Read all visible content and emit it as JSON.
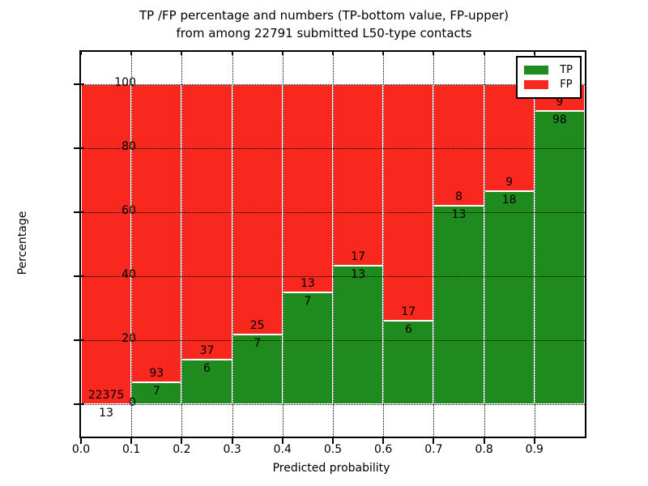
{
  "title_line1": "TP /FP percentage and numbers (TP-bottom value, FP-upper)",
  "title_line2": "from among 22791 submitted L50-type contacts",
  "chart_data": {
    "type": "bar",
    "stacked": true,
    "title": "TP /FP percentage and numbers (TP-bottom value, FP-upper) from among 22791 submitted L50-type contacts",
    "xlabel": "Predicted probability",
    "ylabel": "Percentage",
    "xlim": [
      0.0,
      1.0
    ],
    "ylim": [
      -10,
      110
    ],
    "bar_width": 0.1,
    "grid": "dotted",
    "legend_position": "upper right",
    "colors": {
      "tp": "#1f8b1f",
      "fp": "#f8281e",
      "bar_edge": "#ffffff"
    },
    "legend": [
      {
        "label": "TP",
        "color": "#1f8b1f"
      },
      {
        "label": "FP",
        "color": "#f8281e"
      }
    ],
    "y_ticks": [
      {
        "value": 0,
        "label": "0"
      },
      {
        "value": 20,
        "label": "20"
      },
      {
        "value": 40,
        "label": "40"
      },
      {
        "value": 60,
        "label": "60"
      },
      {
        "value": 80,
        "label": "80"
      },
      {
        "value": 100,
        "label": "100"
      }
    ],
    "x_ticks": [
      {
        "value": 0.0,
        "label": "0.0"
      },
      {
        "value": 0.1,
        "label": "0.1"
      },
      {
        "value": 0.2,
        "label": "0.2"
      },
      {
        "value": 0.3,
        "label": "0.3"
      },
      {
        "value": 0.4,
        "label": "0.4"
      },
      {
        "value": 0.5,
        "label": "0.5"
      },
      {
        "value": 0.6,
        "label": "0.6"
      },
      {
        "value": 0.7,
        "label": "0.7"
      },
      {
        "value": 0.8,
        "label": "0.8"
      },
      {
        "value": 0.9,
        "label": "0.9"
      }
    ],
    "bars": [
      {
        "x_start": 0.0,
        "tp_count": 13,
        "fp_count": 22375,
        "tp_pct": 0.06,
        "fp_pct": 99.94
      },
      {
        "x_start": 0.1,
        "tp_count": 7,
        "fp_count": 93,
        "tp_pct": 7.0,
        "fp_pct": 93.0
      },
      {
        "x_start": 0.2,
        "tp_count": 6,
        "fp_count": 37,
        "tp_pct": 13.95,
        "fp_pct": 86.05
      },
      {
        "x_start": 0.3,
        "tp_count": 7,
        "fp_count": 25,
        "tp_pct": 21.88,
        "fp_pct": 78.12
      },
      {
        "x_start": 0.4,
        "tp_count": 7,
        "fp_count": 13,
        "tp_pct": 35.0,
        "fp_pct": 65.0
      },
      {
        "x_start": 0.5,
        "tp_count": 13,
        "fp_count": 17,
        "tp_pct": 43.33,
        "fp_pct": 56.67
      },
      {
        "x_start": 0.6,
        "tp_count": 6,
        "fp_count": 17,
        "tp_pct": 26.09,
        "fp_pct": 73.91
      },
      {
        "x_start": 0.7,
        "tp_count": 13,
        "fp_count": 8,
        "tp_pct": 61.9,
        "fp_pct": 38.1
      },
      {
        "x_start": 0.8,
        "tp_count": 18,
        "fp_count": 9,
        "tp_pct": 66.67,
        "fp_pct": 33.33
      },
      {
        "x_start": 0.9,
        "tp_count": 98,
        "fp_count": 9,
        "tp_pct": 91.59,
        "fp_pct": 8.41
      }
    ]
  }
}
